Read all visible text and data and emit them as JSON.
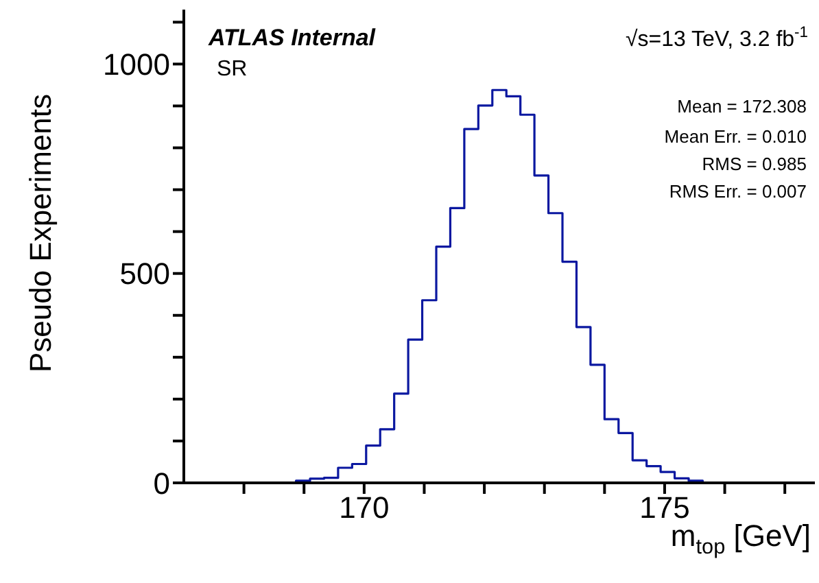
{
  "chart_data": {
    "type": "histogram",
    "xlabel": "m$_{top}$ [GeV]",
    "ylabel": "Pseudo Experiments",
    "annotations": [
      "ATLAS Internal",
      "SR",
      "√s=13 TeV, 3.2 fb$^{-1}$",
      "Mean = 172.308",
      "Mean Err. = 0.010",
      "RMS = 0.985",
      "RMS Err. = 0.007"
    ],
    "bins": [
      167,
      167.2333,
      167.4667,
      167.7,
      167.9333,
      168.1667,
      168.4,
      168.6333,
      168.8667,
      169.1,
      169.3333,
      169.5667,
      169.8,
      170.0333,
      170.2667,
      170.5,
      170.7333,
      170.9667,
      171.2,
      171.4333,
      171.6667,
      171.9,
      172.1333,
      172.3667,
      172.6,
      172.8333,
      173.0667,
      173.3,
      173.5333,
      173.7667,
      174,
      174.2333,
      174.4667,
      174.7,
      174.9333,
      175.1667,
      175.4,
      175.6333,
      175.8667,
      176.1,
      176.3333,
      176.5667,
      176.8,
      177.0333,
      177.2667,
      177.5
    ],
    "values": [
      0,
      0,
      0,
      0,
      0,
      0,
      0,
      0,
      5,
      10,
      12,
      36,
      45,
      89,
      128,
      213,
      342,
      436,
      564,
      656,
      845,
      901,
      938,
      923,
      879,
      734,
      644,
      528,
      372,
      282,
      152,
      119,
      54,
      40,
      26,
      11,
      5,
      0,
      0,
      0,
      0,
      0,
      0,
      0,
      0
    ],
    "color": "#0b18a0",
    "xlim": [
      167,
      177.5
    ],
    "xticks": [
      {
        "value": 168,
        "label": null
      },
      {
        "value": 169,
        "label": null
      },
      170,
      {
        "value": 171,
        "label": null
      },
      {
        "value": 172,
        "label": null
      },
      {
        "value": 173,
        "label": null
      },
      {
        "value": 174,
        "label": null
      },
      175,
      {
        "value": 176,
        "label": null
      },
      {
        "value": 177,
        "label": null
      }
    ],
    "ylim": [
      0,
      1130
    ],
    "yticks": [
      0,
      {
        "value": 100,
        "label": null
      },
      {
        "value": 200,
        "label": null
      },
      {
        "value": 300,
        "label": null
      },
      {
        "value": 400,
        "label": null
      },
      500,
      {
        "value": 600,
        "label": null
      },
      {
        "value": 700,
        "label": null
      },
      {
        "value": 800,
        "label": null
      },
      {
        "value": 900,
        "label": null
      },
      1000,
      {
        "value": 1100,
        "label": null
      }
    ],
    "grid": false,
    "legend": false
  }
}
